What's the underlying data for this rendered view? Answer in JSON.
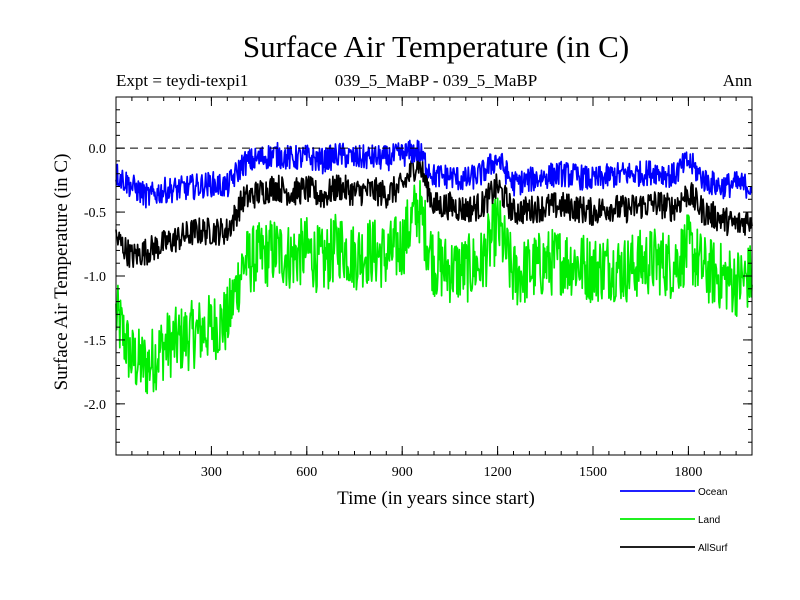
{
  "chart_data": {
    "type": "line",
    "title": "Surface Air Temperature (in C)",
    "subtitle_left": "Expt = teydi-texpi1",
    "subtitle_center": "039_5_MaBP - 039_5_MaBP",
    "subtitle_right": "Ann",
    "xlabel": "Time (in years since start)",
    "ylabel": "Surface Air Temperature (in C)",
    "xlim": [
      0,
      2000
    ],
    "ylim": [
      -2.4,
      0.4
    ],
    "xticks": [
      300,
      600,
      900,
      1200,
      1500,
      1800
    ],
    "xtick_labels": [
      "300",
      "600",
      "900",
      "1200",
      "1500",
      "1800"
    ],
    "yticks": [
      0.0,
      -0.5,
      -1.0,
      -1.5,
      -2.0
    ],
    "ytick_labels": [
      "0.0",
      "-0.5",
      "-1.0",
      "-1.5",
      "-2.0"
    ],
    "reference_line": 0.0,
    "legend_position": "bottom-right",
    "series": [
      {
        "name": "Ocean",
        "color": "#0000ff",
        "x": [
          0,
          50,
          100,
          150,
          200,
          250,
          300,
          350,
          400,
          450,
          500,
          550,
          600,
          650,
          700,
          750,
          800,
          850,
          900,
          950,
          1000,
          1050,
          1100,
          1150,
          1200,
          1250,
          1300,
          1350,
          1400,
          1450,
          1500,
          1550,
          1600,
          1650,
          1700,
          1750,
          1800,
          1850,
          1900,
          1950,
          2000
        ],
        "values": [
          -0.2,
          -0.3,
          -0.38,
          -0.33,
          -0.32,
          -0.3,
          -0.28,
          -0.3,
          -0.12,
          -0.08,
          -0.05,
          -0.08,
          -0.07,
          -0.1,
          -0.05,
          -0.08,
          -0.07,
          -0.08,
          -0.05,
          -0.02,
          -0.22,
          -0.22,
          -0.25,
          -0.2,
          -0.08,
          -0.28,
          -0.25,
          -0.22,
          -0.2,
          -0.22,
          -0.25,
          -0.22,
          -0.2,
          -0.2,
          -0.18,
          -0.22,
          -0.1,
          -0.25,
          -0.3,
          -0.28,
          -0.3
        ]
      },
      {
        "name": "Land",
        "color": "#00ee00",
        "x": [
          0,
          50,
          100,
          150,
          200,
          250,
          300,
          350,
          400,
          450,
          500,
          550,
          600,
          650,
          700,
          750,
          800,
          850,
          900,
          950,
          1000,
          1050,
          1100,
          1150,
          1200,
          1250,
          1300,
          1350,
          1400,
          1450,
          1500,
          1550,
          1600,
          1650,
          1700,
          1750,
          1800,
          1850,
          1900,
          1950,
          2000
        ],
        "values": [
          -1.3,
          -1.65,
          -1.7,
          -1.55,
          -1.5,
          -1.45,
          -1.4,
          -1.35,
          -0.9,
          -0.85,
          -0.8,
          -0.85,
          -0.8,
          -0.9,
          -0.75,
          -0.85,
          -0.8,
          -0.85,
          -0.75,
          -0.45,
          -0.9,
          -0.95,
          -0.95,
          -0.9,
          -0.6,
          -1.0,
          -0.95,
          -0.9,
          -0.88,
          -0.9,
          -0.95,
          -0.92,
          -0.95,
          -0.9,
          -0.88,
          -0.92,
          -0.78,
          -0.95,
          -1.0,
          -1.05,
          -1.0
        ]
      },
      {
        "name": "AllSurf",
        "color": "#000000",
        "x": [
          0,
          50,
          100,
          150,
          200,
          250,
          300,
          350,
          400,
          450,
          500,
          550,
          600,
          650,
          700,
          750,
          800,
          850,
          900,
          950,
          1000,
          1050,
          1100,
          1150,
          1200,
          1250,
          1300,
          1350,
          1400,
          1450,
          1500,
          1550,
          1600,
          1650,
          1700,
          1750,
          1800,
          1850,
          1900,
          1950,
          2000
        ],
        "values": [
          -0.7,
          -0.85,
          -0.8,
          -0.75,
          -0.7,
          -0.65,
          -0.65,
          -0.65,
          -0.4,
          -0.35,
          -0.3,
          -0.35,
          -0.32,
          -0.38,
          -0.3,
          -0.35,
          -0.33,
          -0.36,
          -0.3,
          -0.1,
          -0.45,
          -0.45,
          -0.48,
          -0.45,
          -0.3,
          -0.5,
          -0.48,
          -0.46,
          -0.45,
          -0.47,
          -0.5,
          -0.46,
          -0.48,
          -0.45,
          -0.43,
          -0.47,
          -0.35,
          -0.5,
          -0.55,
          -0.6,
          -0.55
        ]
      }
    ]
  }
}
